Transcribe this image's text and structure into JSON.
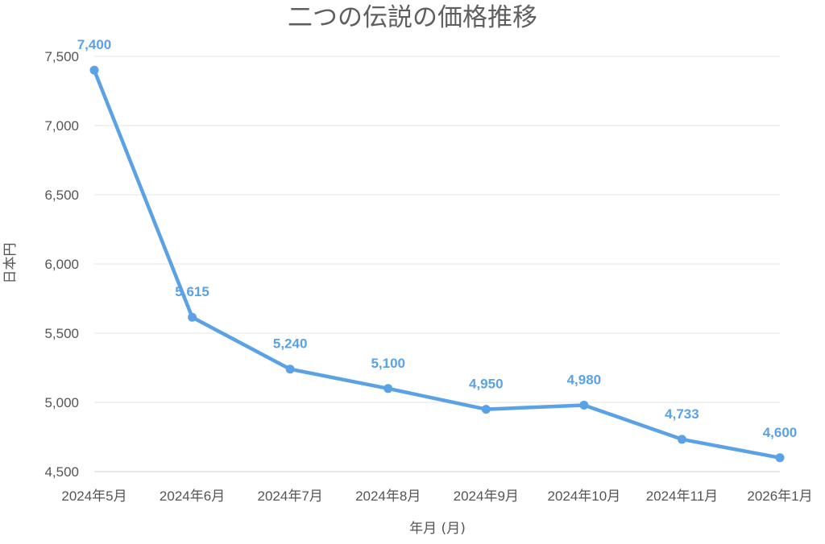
{
  "chart_data": {
    "type": "line",
    "title": "二つの伝説の価格推移",
    "xlabel": "年月 (月)",
    "ylabel": "日本円",
    "categories": [
      "2024年5月",
      "2024年6月",
      "2024年7月",
      "2024年8月",
      "2024年9月",
      "2024年10月",
      "2024年11月",
      "2026年1月"
    ],
    "series": [
      {
        "values": [
          7400,
          5615,
          5240,
          5100,
          4950,
          4980,
          4733,
          4600
        ],
        "labels": [
          "7,400",
          "5,615",
          "5,240",
          "5,100",
          "4,950",
          "4,980",
          "4,733",
          "4,600"
        ],
        "color": "#5aa2e5"
      }
    ],
    "ylim": [
      4500,
      7500
    ],
    "yticks": [
      4500,
      5000,
      5500,
      6000,
      6500,
      7000,
      7500
    ],
    "ytick_labels": [
      "4,500",
      "5,000",
      "5,500",
      "6,000",
      "6,500",
      "7,000",
      "7,500"
    ],
    "grid": true,
    "data_labels": true
  }
}
